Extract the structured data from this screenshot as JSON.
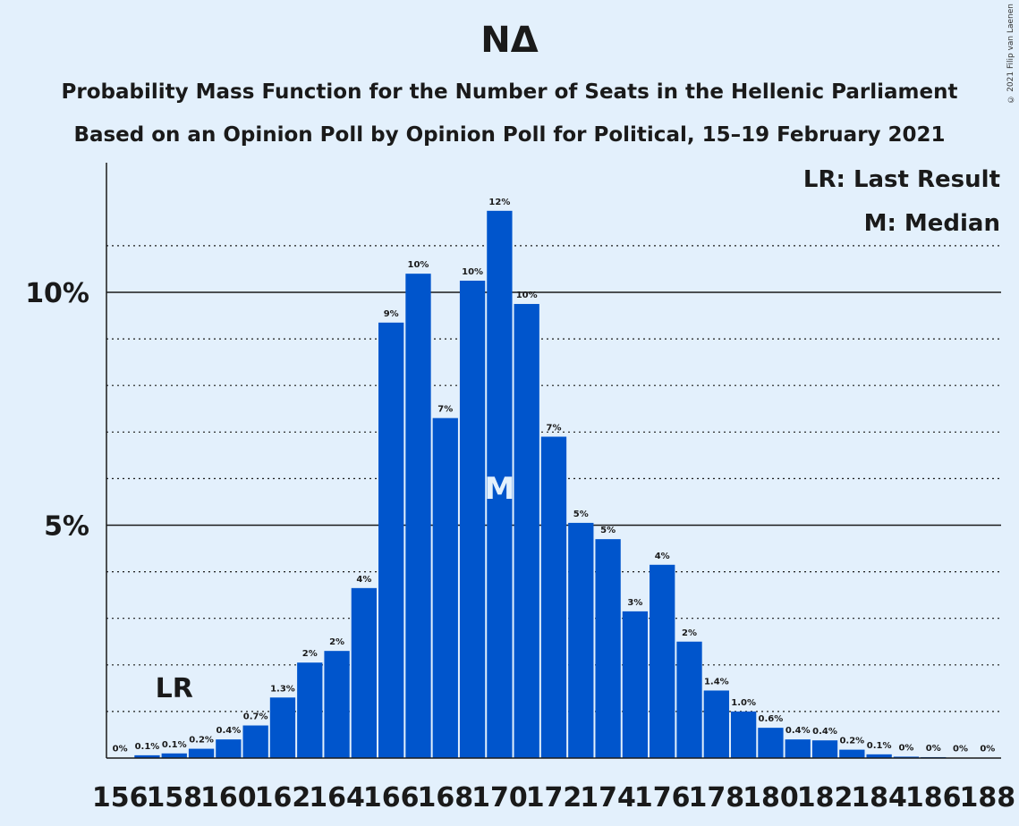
{
  "header": {
    "title": "NΔ",
    "subtitle_1": "Probability Mass Function for the Number of Seats in the Hellenic Parliament",
    "subtitle_2": "Based on an Opinion Poll by Opinion Poll for Political, 15–19 February 2021",
    "copyright": "© 2021 Filip van Laenen"
  },
  "legend": {
    "last_result": "LR: Last Result",
    "median": "M: Median"
  },
  "markers": {
    "last_result_label": "LR",
    "last_result_seat": 158,
    "median_label": "M",
    "median_seat": 170
  },
  "colors": {
    "background": "#e3f0fc",
    "bar": "#0055cc",
    "text": "#1a1a1a"
  },
  "chart_data": {
    "type": "bar",
    "title": "NΔ",
    "categories": [
      156,
      157,
      158,
      159,
      160,
      161,
      162,
      163,
      164,
      165,
      166,
      167,
      168,
      169,
      170,
      171,
      172,
      173,
      174,
      175,
      176,
      177,
      178,
      179,
      180,
      181,
      182,
      183,
      184,
      185,
      186,
      187,
      188
    ],
    "values": [
      0.01,
      0.06,
      0.1,
      0.2,
      0.4,
      0.7,
      1.3,
      2.05,
      2.3,
      3.65,
      9.35,
      10.4,
      7.3,
      10.25,
      11.75,
      9.75,
      6.9,
      5.05,
      4.7,
      3.15,
      4.15,
      2.5,
      1.45,
      1.0,
      0.65,
      0.4,
      0.38,
      0.18,
      0.08,
      0.03,
      0.02,
      0.01,
      0.01
    ],
    "labels": [
      "0%",
      "0.1%",
      "0.1%",
      "0.2%",
      "0.4%",
      "0.7%",
      "1.3%",
      "2%",
      "2%",
      "4%",
      "9%",
      "10%",
      "7%",
      "10%",
      "12%",
      "10%",
      "7%",
      "5%",
      "5%",
      "3%",
      "4%",
      "2%",
      "1.4%",
      "1.0%",
      "0.6%",
      "0.4%",
      "0.4%",
      "0.2%",
      "0.1%",
      "0%",
      "0%",
      "0%",
      "0%"
    ],
    "x_tick_labels": [
      "156",
      "158",
      "160",
      "162",
      "164",
      "166",
      "168",
      "170",
      "172",
      "174",
      "176",
      "178",
      "180",
      "182",
      "184",
      "186",
      "188"
    ],
    "y_ticks": [
      {
        "value": 5,
        "label": "5%"
      },
      {
        "value": 10,
        "label": "10%"
      }
    ],
    "ylim": [
      0,
      12.7
    ],
    "gridlines": [
      1,
      2,
      3,
      4,
      5,
      6,
      7,
      8,
      9,
      10,
      11
    ],
    "major_gridlines": [
      5,
      10
    ],
    "unit": "%"
  }
}
